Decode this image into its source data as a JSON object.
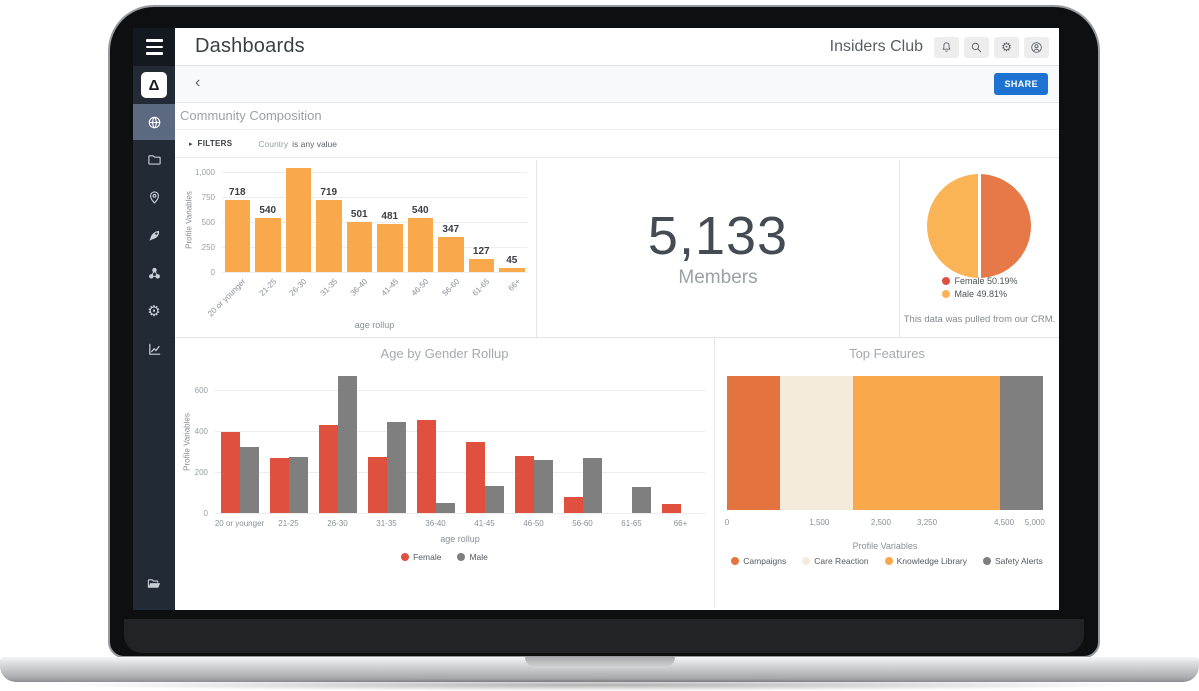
{
  "header": {
    "title": "Dashboards",
    "account": "Insiders Club",
    "icons": [
      "notifications-bell",
      "search",
      "settings-gear",
      "account"
    ]
  },
  "glyphs": {
    "gear": "⚙"
  },
  "sidebar": {
    "logo_glyph": "Δ",
    "items": [
      "explore-globe (active)",
      "folder",
      "location-pin",
      "rocket",
      "molecule",
      "settings-gear",
      "analytics-chart"
    ],
    "bottom_item": "folder-open"
  },
  "toolbar": {
    "back_glyph": "‹",
    "share_label": "SHARE"
  },
  "page": {
    "title": "Community Composition"
  },
  "filters": {
    "disclosure_glyph": "▸",
    "label": "FILTERS",
    "field": "Country",
    "condition": "is any value"
  },
  "big_number": {
    "value": "5,133",
    "label": "Members"
  },
  "colors": {
    "accent_blue": "#1E73D2",
    "orange": "#F9A94B",
    "dark_orange": "#E4743F",
    "red": "#E0503F",
    "gray": "#7F7F7F",
    "cream": "#F5EBDC",
    "sidebar_bg": "#222A35",
    "sidebar_active_bg": "#5B6A80"
  },
  "chart_data": [
    {
      "type": "bar",
      "variant": "column",
      "categories": [
        "20 or younger",
        "21-25",
        "26-30",
        "31-35",
        "36-40",
        "41-45",
        "46-50",
        "56-60",
        "61-65",
        "66+"
      ],
      "values": [
        718,
        540,
        1105,
        719,
        501,
        481,
        540,
        347,
        127,
        45
      ],
      "data_labels": [
        "718",
        "540",
        "",
        "719",
        "501",
        "481",
        "540",
        "347",
        "127",
        "45"
      ],
      "color": "#F9A94B",
      "xlabel": "age rollup",
      "ylabel": "Profile Variables",
      "ylim": [
        0,
        1040
      ],
      "yticks": [
        {
          "v": 0,
          "label": "0"
        },
        {
          "v": 250,
          "label": "250"
        },
        {
          "v": 500,
          "label": "500"
        },
        {
          "v": 750,
          "label": "750"
        },
        {
          "v": 1000,
          "label": "1,000"
        }
      ],
      "grid": true
    },
    {
      "type": "pie",
      "series": [
        {
          "name": "Female",
          "value": 50.19,
          "slice_color": "#E67947",
          "dot_color": "#DC5240",
          "legend_label": "Female 50.19%"
        },
        {
          "name": "Male",
          "value": 49.81,
          "slice_color": "#FAB355",
          "dot_color": "#FAB355",
          "legend_label": "Male 49.81%"
        }
      ],
      "legend_position": "bottom",
      "footnote": "This data was pulled from our CRM."
    },
    {
      "type": "bar",
      "variant": "grouped",
      "title": "Age by Gender Rollup",
      "categories": [
        "20 or younger",
        "21-25",
        "26-30",
        "31-35",
        "36-40",
        "41-45",
        "46-50",
        "56-60",
        "61-65",
        "66+"
      ],
      "series": [
        {
          "name": "Female",
          "color": "#E0503F",
          "values": [
            397,
            268,
            432,
            272,
            453,
            348,
            280,
            80,
            0,
            45
          ]
        },
        {
          "name": "Male",
          "color": "#7F7F7F",
          "values": [
            321,
            272,
            673,
            447,
            48,
            133,
            260,
            267,
            127,
            0
          ]
        }
      ],
      "xlabel": "age rollup",
      "ylabel": "Profile Variables",
      "ylim": [
        0,
        700
      ],
      "yticks": [
        {
          "v": 0,
          "label": "0"
        },
        {
          "v": 200,
          "label": "200"
        },
        {
          "v": 400,
          "label": "400"
        },
        {
          "v": 600,
          "label": "600"
        }
      ],
      "legend_position": "bottom",
      "grid": true
    },
    {
      "type": "bar",
      "variant": "stacked_horizontal",
      "title": "Top Features",
      "segments": [
        {
          "name": "Campaigns",
          "value": 865,
          "color": "#E4743F"
        },
        {
          "name": "Care Reaction",
          "value": 1175,
          "color": "#F5EBDC"
        },
        {
          "name": "Knowledge Library",
          "value": 2400,
          "color": "#F9A94B"
        },
        {
          "name": "Safety Alerts",
          "value": 693,
          "color": "#7F7F7F"
        }
      ],
      "xlim": [
        0,
        5133
      ],
      "xticks": [
        {
          "v": 0,
          "label": "0"
        },
        {
          "v": 1500,
          "label": "1,500"
        },
        {
          "v": 2500,
          "label": "2,500"
        },
        {
          "v": 3250,
          "label": "3,250"
        },
        {
          "v": 4500,
          "label": "4,500"
        },
        {
          "v": 5000,
          "label": "5,000"
        }
      ],
      "xlabel": "Profile Variables",
      "legend_position": "bottom"
    }
  ]
}
